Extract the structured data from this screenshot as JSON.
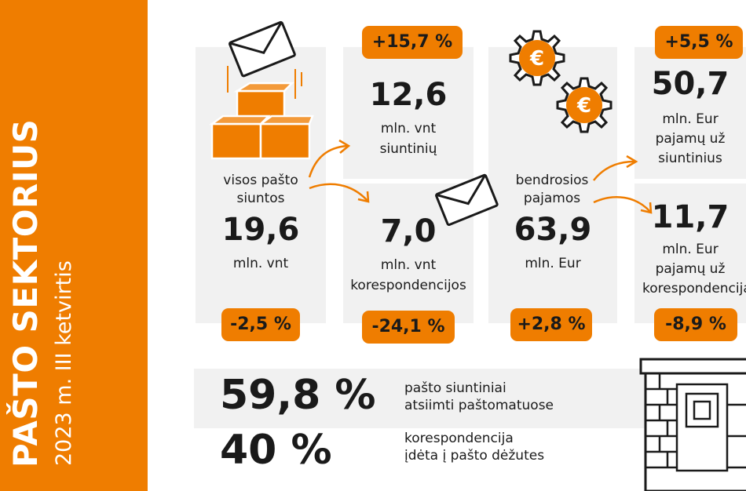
{
  "sidebar": {
    "title": "PAŠTO SEKTORIUS",
    "subtitle": "2023 m. III ketvirtis"
  },
  "mail": {
    "total_label_line1": "visos pašto",
    "total_label_line2": "siuntos",
    "total_value": "19,6",
    "total_unit": "mln. vnt",
    "total_change": "-2,5 %",
    "parcels_change": "+15,7 %",
    "parcels_value": "12,6",
    "parcels_unit": "mln. vnt",
    "parcels_label": "siuntinių",
    "corr_value": "7,0",
    "corr_unit": "mln. vnt",
    "corr_label": "korespondencijos",
    "corr_change": "-24,1 %"
  },
  "revenue": {
    "total_label_line1": "bendrosios",
    "total_label_line2": "pajamos",
    "total_value": "63,9",
    "total_unit": "mln. Eur",
    "total_change": "+2,8 %",
    "parcels_change": "+5,5 %",
    "parcels_value": "50,7",
    "parcels_line1": "mln. Eur",
    "parcels_line2": "pajamų už",
    "parcels_line3": "siuntinius",
    "corr_value": "11,7",
    "corr_line1": "mln. Eur",
    "corr_line2": "pajamų už",
    "corr_line3": "korespondenciją",
    "corr_change": "-8,9 %"
  },
  "bottom": {
    "stat1_value": "59,8 %",
    "stat1_line1": "pašto siuntiniai",
    "stat1_line2": "atsiimti paštomatuose",
    "stat2_value": "40 %",
    "stat2_line1": "korespondencija",
    "stat2_line2": "įdėta į pašto dėžutes"
  },
  "icons": {
    "euro_symbol": "€"
  },
  "colors": {
    "accent": "#ef7d00",
    "panel": "#f1f1f1",
    "text": "#1a1a1a"
  }
}
